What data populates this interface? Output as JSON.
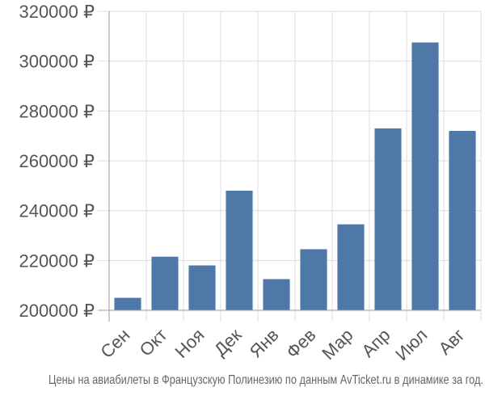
{
  "chart_data": {
    "type": "bar",
    "title": "",
    "xlabel": "",
    "ylabel": "",
    "categories": [
      "Сен",
      "Окт",
      "Ноя",
      "Дек",
      "Янв",
      "Фев",
      "Мар",
      "Апр",
      "Июл",
      "Авг"
    ],
    "values": [
      205000,
      221500,
      218000,
      248000,
      212500,
      224500,
      234500,
      273000,
      307500,
      272000
    ],
    "ylim": [
      200000,
      320000
    ],
    "yticks": [
      200000,
      220000,
      240000,
      260000,
      280000,
      300000,
      320000
    ],
    "ytick_labels": [
      "200000 ₽",
      "220000 ₽",
      "240000 ₽",
      "260000 ₽",
      "280000 ₽",
      "300000 ₽",
      "320000 ₽"
    ],
    "grid": true,
    "colors": {
      "bar": "#4e78a8",
      "grid": "#dddddd",
      "axis": "#999999",
      "text": "#555555"
    }
  },
  "footer": "Цены на авиабилеты в Французскую Полинезию по данным AvTicket.ru в динамике за год."
}
